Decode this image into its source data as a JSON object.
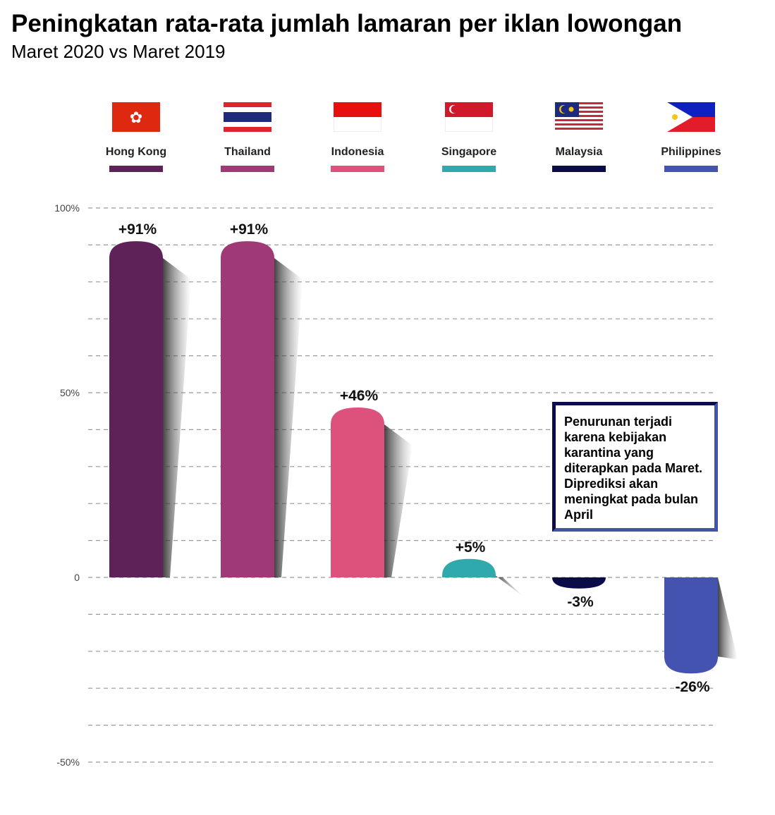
{
  "title": "Peningkatan rata-rata jumlah lamaran per iklan lowongan",
  "subtitle": "Maret 2020 vs Maret 2019",
  "note": "Penurunan terjadi karena kebijakan karantina yang diterapkan pada Maret. Diprediksi akan meningkat pada bulan April",
  "chart_data": {
    "type": "bar",
    "title": "Peningkatan rata-rata jumlah lamaran per iklan lowongan",
    "subtitle": "Maret 2020 vs Maret 2019",
    "categories": [
      "Hong Kong",
      "Thailand",
      "Indonesia",
      "Singapore",
      "Malaysia",
      "Philippines"
    ],
    "values": [
      91,
      91,
      46,
      5,
      -3,
      -26
    ],
    "labels": [
      "+91%",
      "+91%",
      "+46%",
      "+5%",
      "-3%",
      "-26%"
    ],
    "colors": [
      "#5e2259",
      "#a03a77",
      "#dd527c",
      "#2fa9ac",
      "#0b0b4a",
      "#4452b0"
    ],
    "ylim": [
      -50,
      100
    ],
    "yticks": [
      {
        "v": 100,
        "label": "100%"
      },
      {
        "v": 50,
        "label": "50%"
      },
      {
        "v": 0,
        "label": "0"
      },
      {
        "v": -50,
        "label": "-50%"
      }
    ],
    "grid": true,
    "legend": "top",
    "xlabel": "",
    "ylabel": ""
  }
}
